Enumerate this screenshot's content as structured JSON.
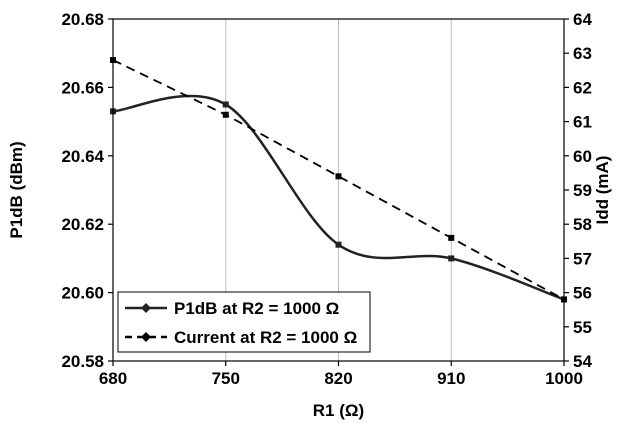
{
  "chart_data": {
    "type": "line",
    "title": "",
    "xlabel": "R1 (Ω)",
    "ylabel": "P1dB (dBm)",
    "y2label": "Idd (mA)",
    "categories": [
      "680",
      "750",
      "820",
      "910",
      "1000"
    ],
    "ylim": [
      20.58,
      20.68
    ],
    "y2lim": [
      54,
      64
    ],
    "yticks": [
      "20.58",
      "20.60",
      "20.62",
      "20.64",
      "20.66",
      "20.68"
    ],
    "y2ticks": [
      "54",
      "55",
      "56",
      "57",
      "58",
      "59",
      "60",
      "61",
      "62",
      "63",
      "64"
    ],
    "grid": {
      "vertical": true,
      "horizontal": false
    },
    "legend_position": "bottom-left",
    "series": [
      {
        "name": "P1dB at R2 = 1000 Ω",
        "axis": "left",
        "style": "solid",
        "color": "#222222",
        "values": [
          20.653,
          20.655,
          20.614,
          20.61,
          20.598
        ]
      },
      {
        "name": "Current at R2 = 1000 Ω",
        "axis": "right",
        "style": "dashed",
        "color": "#000000",
        "values": [
          62.8,
          61.2,
          59.4,
          57.6,
          55.8
        ]
      }
    ]
  }
}
